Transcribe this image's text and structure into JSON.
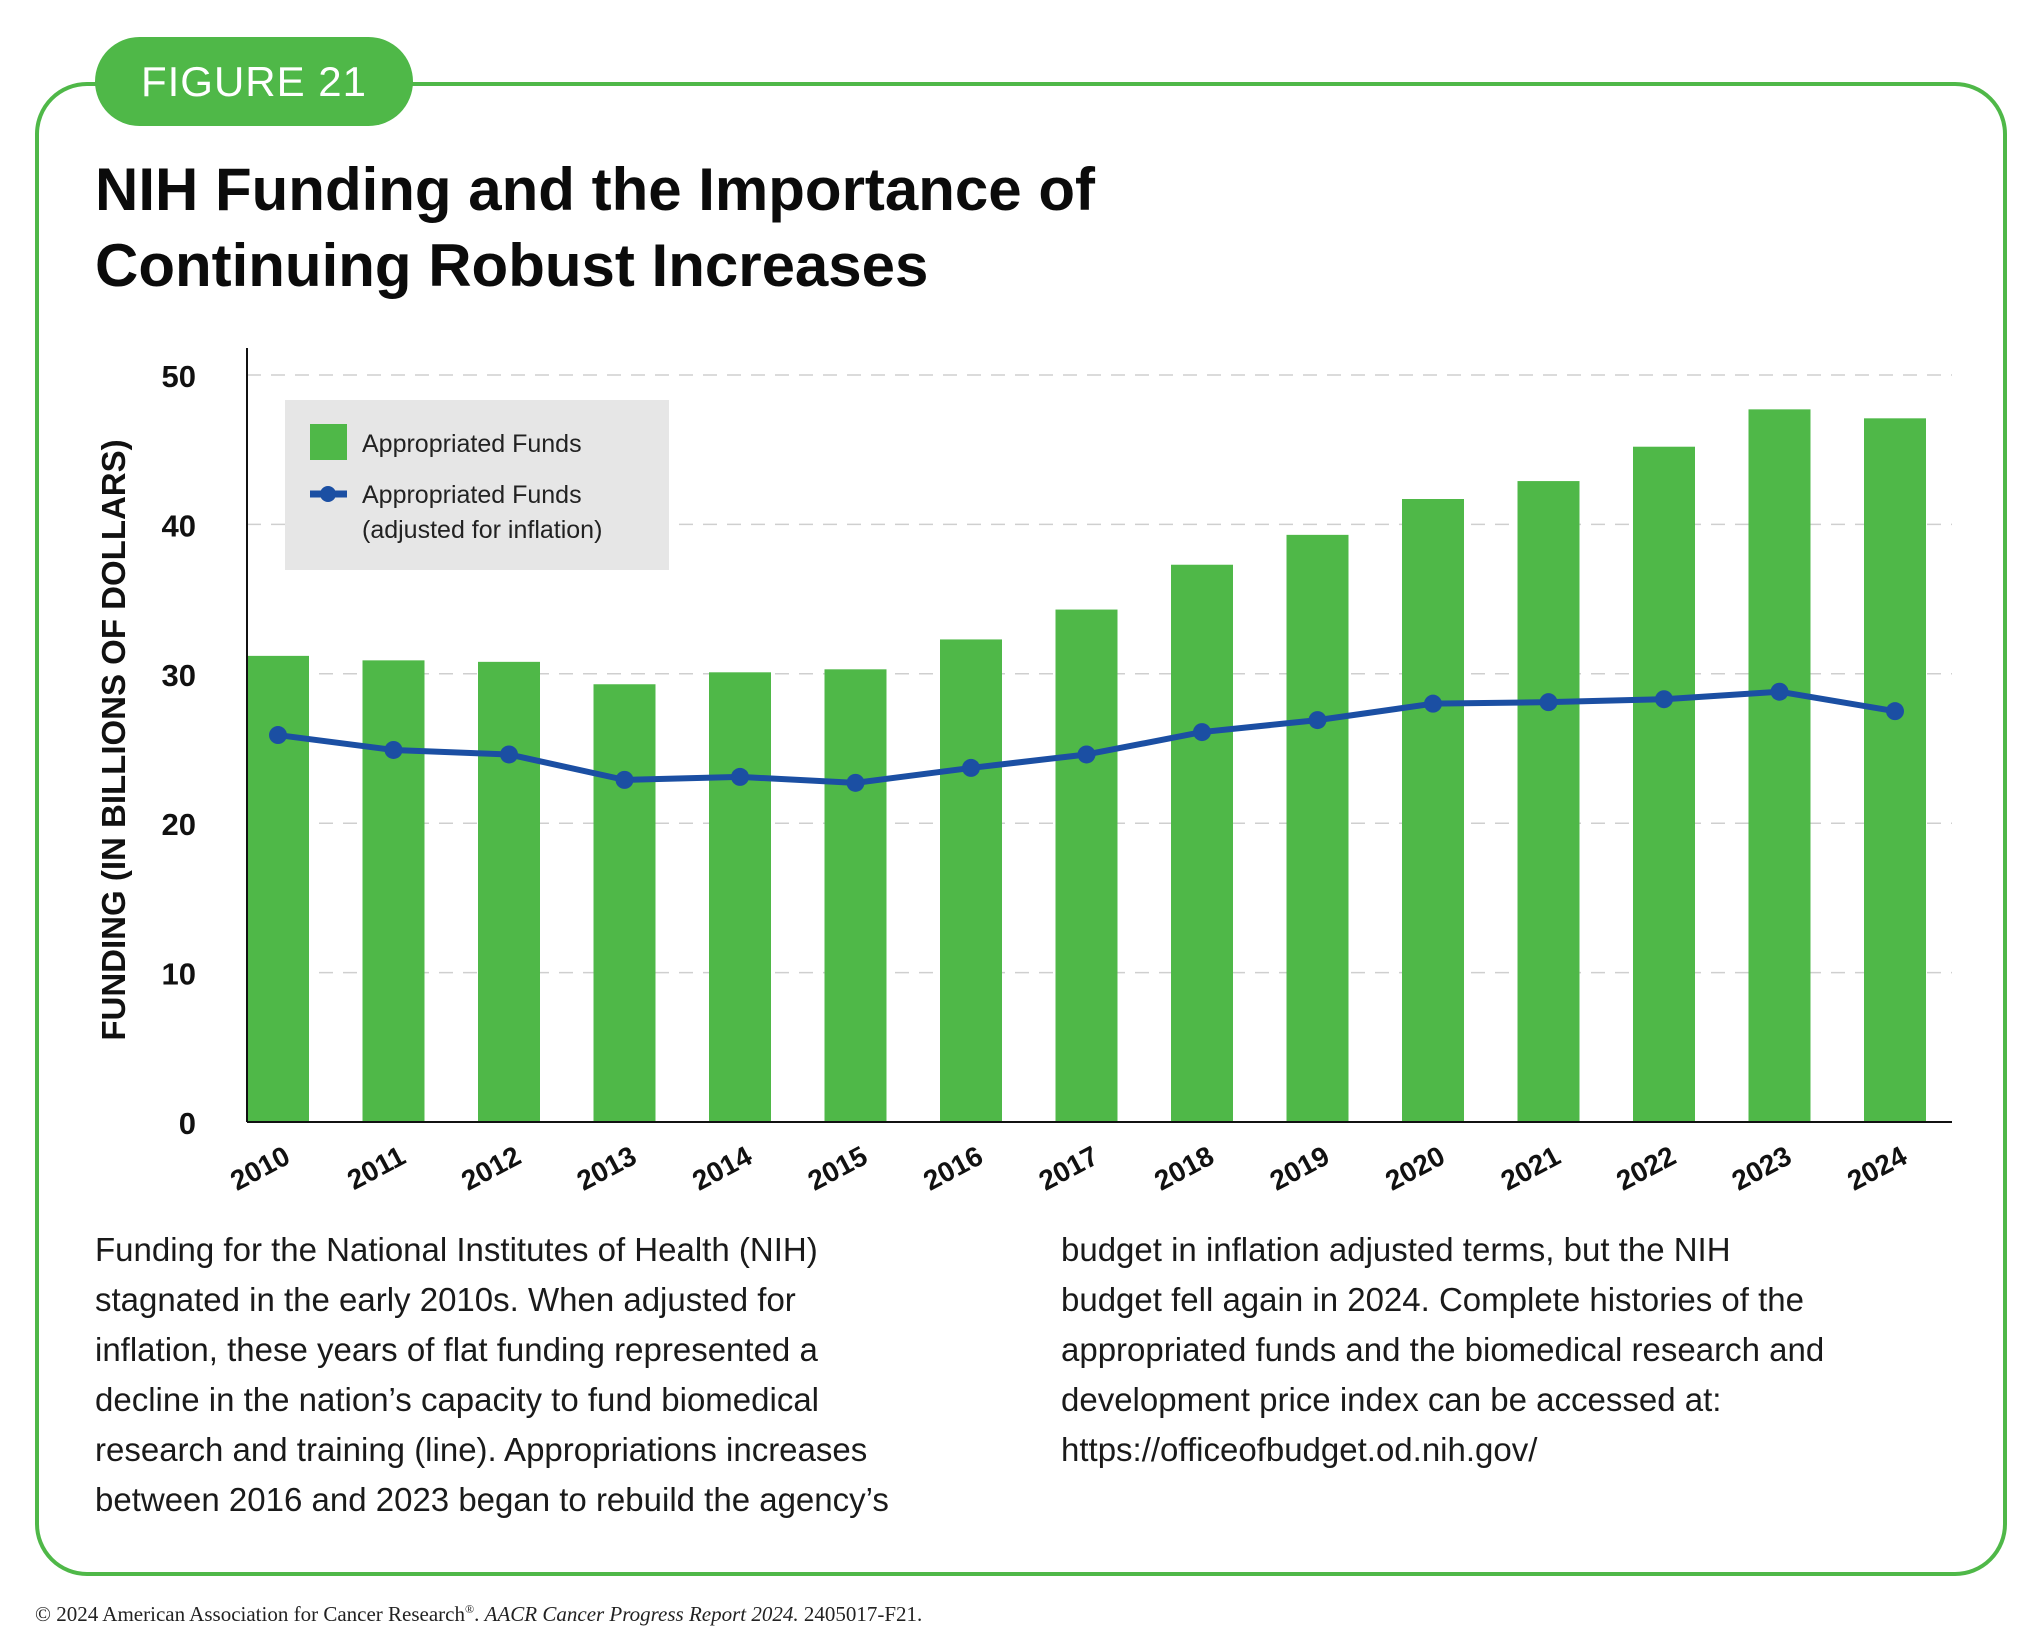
{
  "badge": "FIGURE 21",
  "title_lines": [
    "NIH Funding and the Importance of",
    "Continuing Robust Increases"
  ],
  "colors": {
    "frame": "#4fb848",
    "bar": "#4fb848",
    "line": "#1b4fa3",
    "legend_bg": "#e6e6e6",
    "grid": "#cfcfcf"
  },
  "chart_data": {
    "type": "bar",
    "categories": [
      "2010",
      "2011",
      "2012",
      "2013",
      "2014",
      "2015",
      "2016",
      "2017",
      "2018",
      "2019",
      "2020",
      "2021",
      "2022",
      "2023",
      "2024"
    ],
    "series": [
      {
        "name": "Appropriated Funds",
        "type": "bar",
        "values": [
          31.2,
          30.9,
          30.8,
          29.3,
          30.1,
          30.3,
          32.3,
          34.3,
          37.3,
          39.3,
          41.7,
          42.9,
          45.2,
          47.7,
          47.1
        ]
      },
      {
        "name": "Appropriated Funds (adjusted for inflation)",
        "type": "line",
        "values": [
          25.9,
          24.9,
          24.6,
          22.9,
          23.1,
          22.7,
          23.7,
          24.6,
          26.1,
          26.9,
          28.0,
          28.1,
          28.3,
          28.8,
          27.5
        ]
      }
    ],
    "legend": {
      "position": "top-left",
      "bar_label": "Appropriated Funds",
      "line_label_1": "Appropriated Funds",
      "line_label_2": "(adjusted for inflation)"
    },
    "ylabel": "FUNDING (IN BILLIONS OF DOLLARS)",
    "xlabel": "",
    "ylim": [
      0,
      50
    ],
    "yticks": [
      0,
      10,
      20,
      30,
      40,
      50
    ],
    "grid": true
  },
  "body_left": [
    "Funding for the National Institutes of Health (NIH)",
    "stagnated in the early 2010s. When adjusted for",
    "inflation, these years of flat funding represented a",
    "decline in the nation’s capacity to fund biomedical",
    "research and training (line). Appropriations increases",
    "between 2016 and 2023 began to rebuild the agency’s"
  ],
  "body_right": [
    "budget in inflation adjusted terms, but the NIH",
    "budget fell again in 2024. Complete histories of the",
    "appropriated funds and the biomedical research and",
    "development price index can be accessed at:",
    "https://officeofbudget.od.nih.gov/"
  ],
  "footer": {
    "part1": "© 2024 American Association for Cancer Research",
    "reg": "®",
    "part2": ". ",
    "italic": "AACR Cancer Progress Report 2024.",
    "part3": " 2405017-F21."
  }
}
